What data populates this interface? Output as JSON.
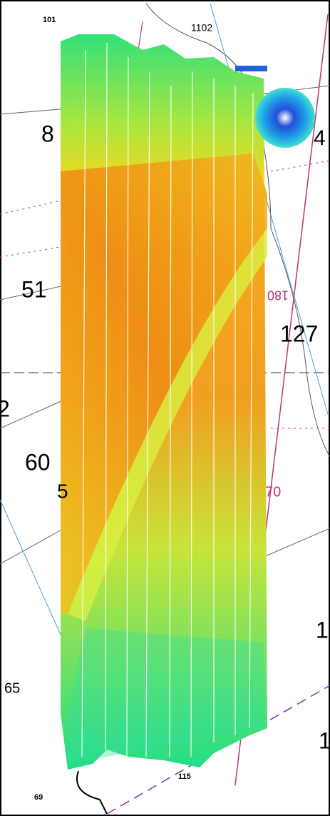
{
  "labels": [
    {
      "text": "101"
    },
    {
      "text": "1102"
    },
    {
      "text": "8"
    },
    {
      "text": "4"
    },
    {
      "text": "51"
    },
    {
      "text": "127"
    },
    {
      "text": "2"
    },
    {
      "text": "60"
    },
    {
      "text": "5"
    },
    {
      "text": "70"
    },
    {
      "text": "180"
    },
    {
      "text": "1"
    },
    {
      "text": "65"
    },
    {
      "text": "1"
    },
    {
      "text": "115"
    },
    {
      "text": "69"
    }
  ]
}
